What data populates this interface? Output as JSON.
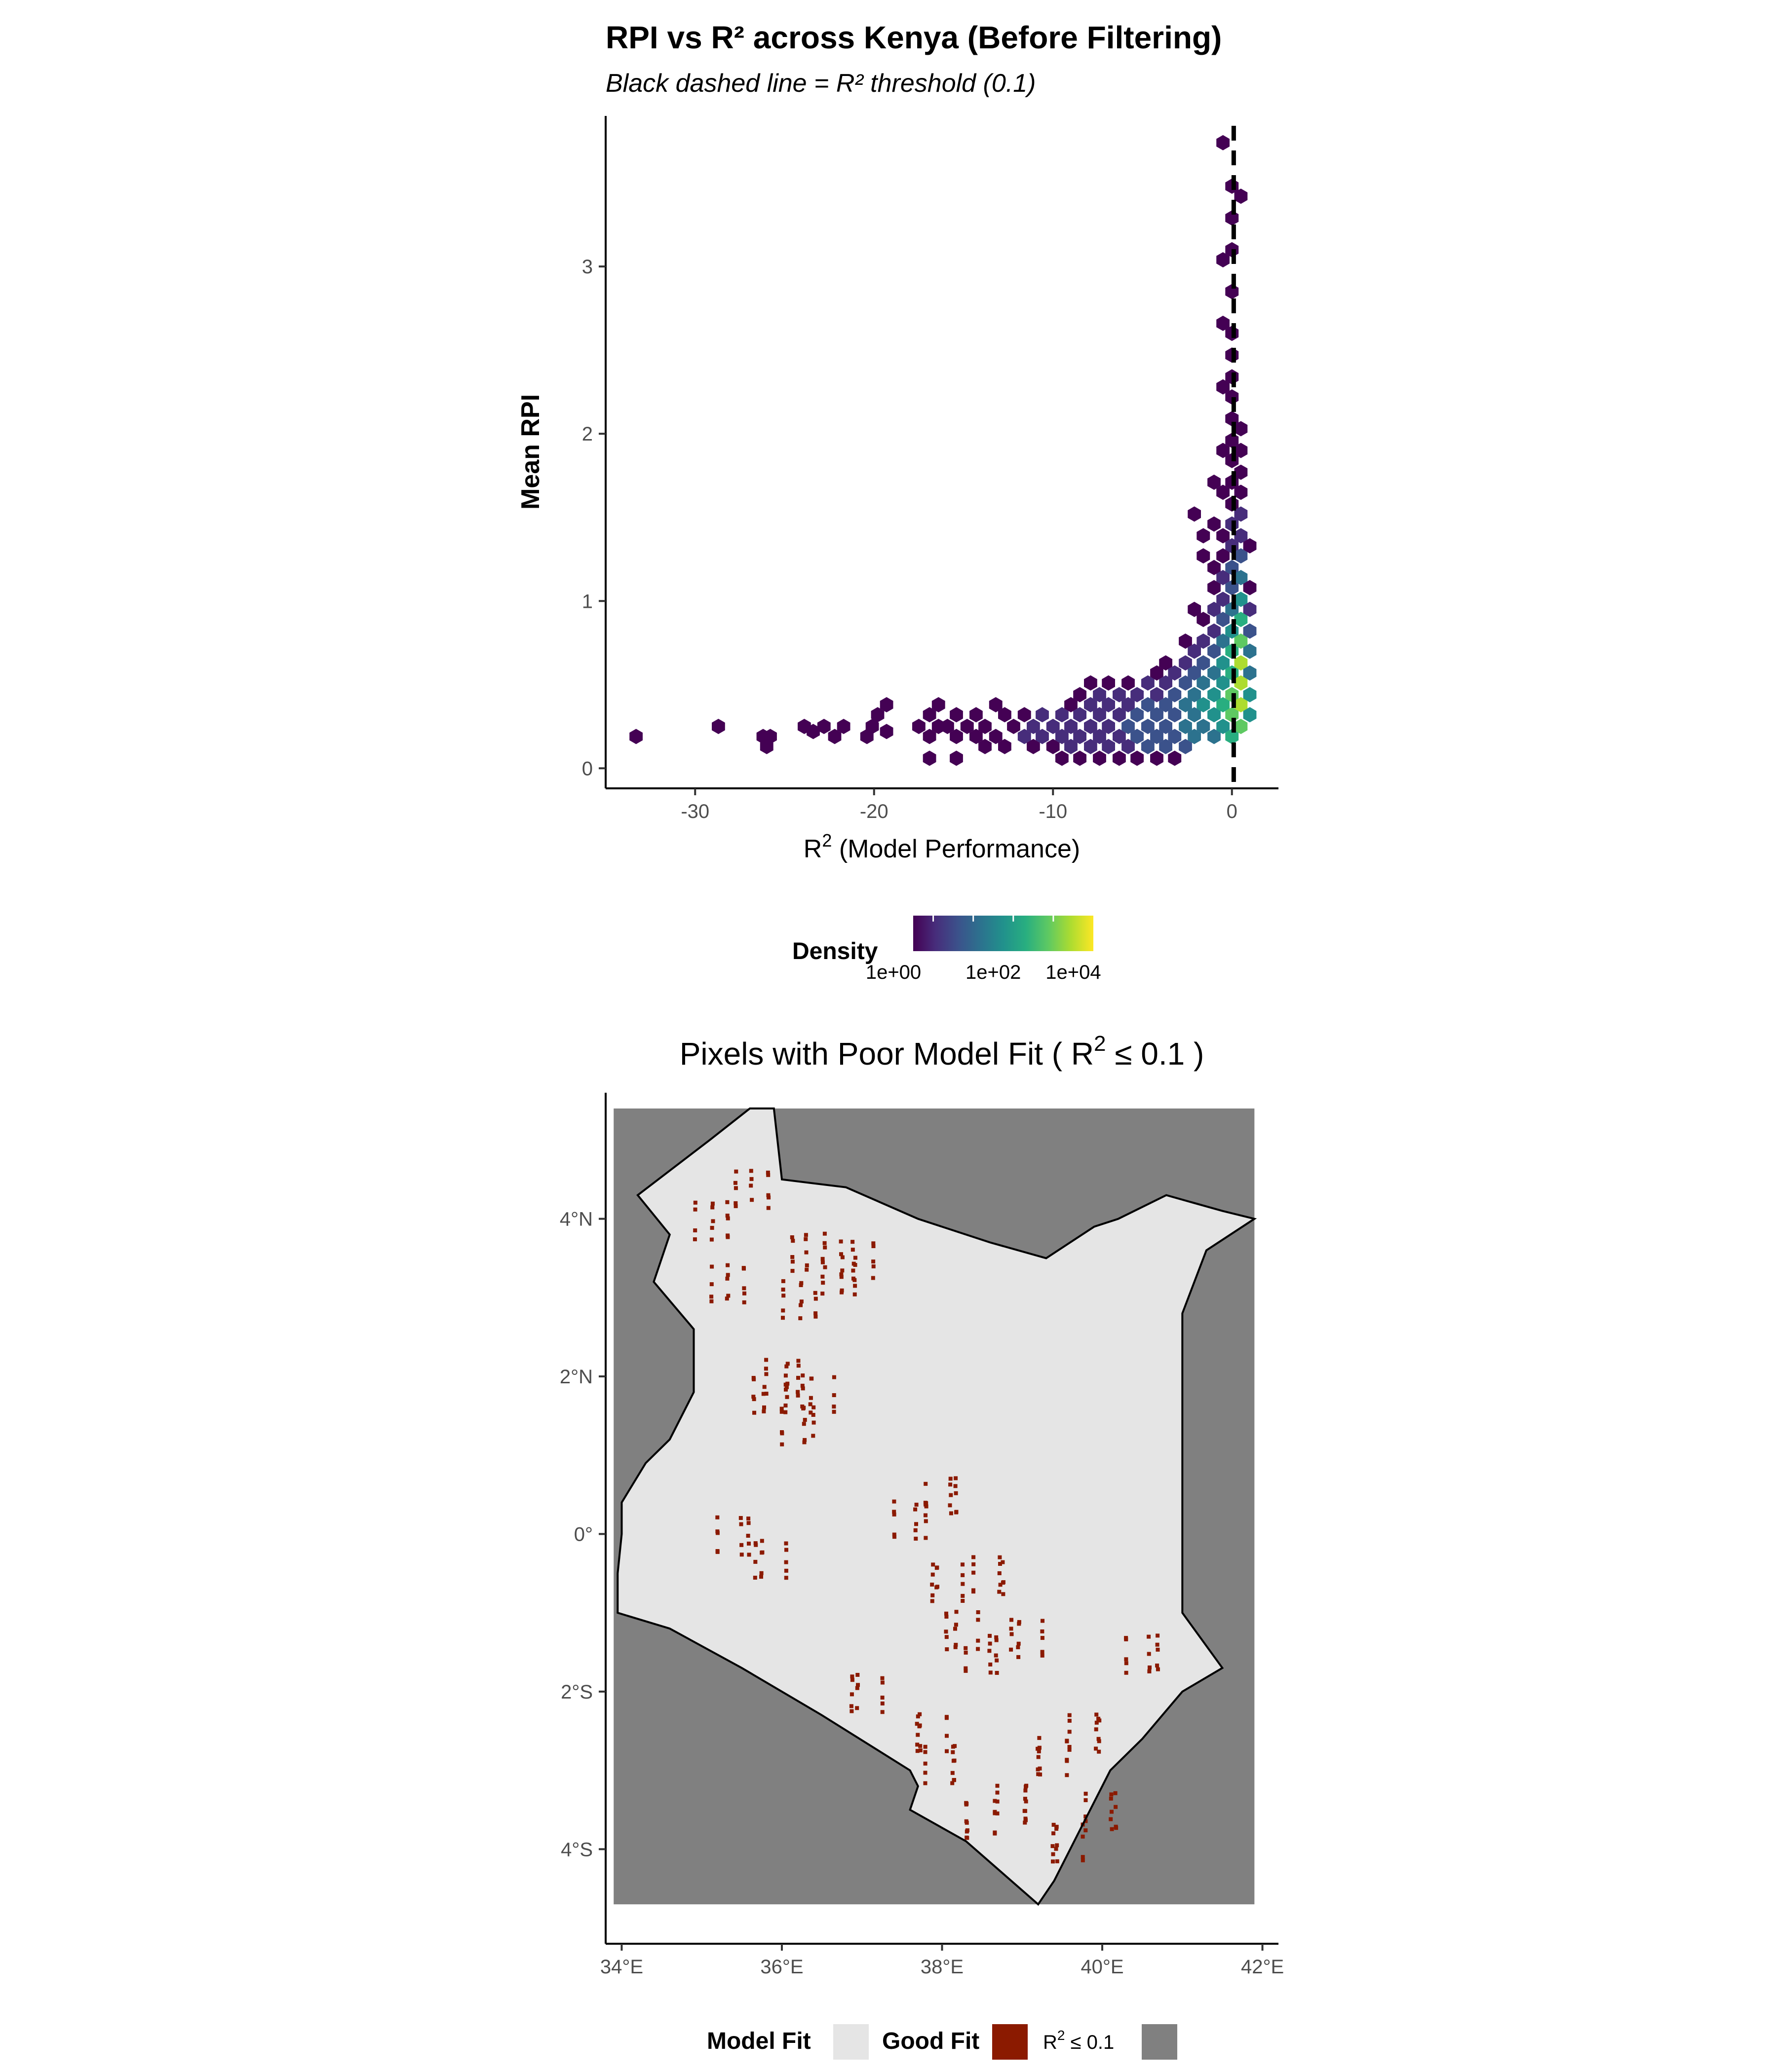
{
  "chart_data": [
    {
      "type": "heatmap",
      "subtype": "hexbin",
      "title": "RPI vs R² across Kenya (Before Filtering)",
      "subtitle": "Black dashed line = R² threshold (0.1)",
      "xlabel_base": "R",
      "xlabel_sup": "2",
      "xlabel_rest": " (Model Performance)",
      "ylabel": "Mean RPI",
      "xlim": [
        -35,
        2.6
      ],
      "ylim": [
        -0.12,
        3.9
      ],
      "x_ticks": [
        -30,
        -20,
        -10,
        0
      ],
      "y_ticks": [
        0,
        1,
        2,
        3
      ],
      "threshold_line": {
        "x": 0.1,
        "style": "dashed",
        "color": "#000000"
      },
      "hexes": [
        [
          -33.3,
          0.19,
          1
        ],
        [
          -28.7,
          0.25,
          1
        ],
        [
          -26.2,
          0.19,
          1
        ],
        [
          -25.8,
          0.19,
          1
        ],
        [
          -26.0,
          0.13,
          1
        ],
        [
          -23.9,
          0.25,
          1
        ],
        [
          -23.4,
          0.22,
          1
        ],
        [
          -22.8,
          0.25,
          1
        ],
        [
          -22.2,
          0.19,
          1
        ],
        [
          -21.7,
          0.25,
          1
        ],
        [
          -20.1,
          0.25,
          1
        ],
        [
          -19.8,
          0.32,
          1
        ],
        [
          -19.3,
          0.38,
          1
        ],
        [
          -20.4,
          0.19,
          1
        ],
        [
          -19.3,
          0.22,
          1
        ],
        [
          -17.5,
          0.25,
          1
        ],
        [
          -16.9,
          0.32,
          1
        ],
        [
          -16.9,
          0.19,
          1
        ],
        [
          -16.4,
          0.25,
          1
        ],
        [
          -16.4,
          0.38,
          1
        ],
        [
          -15.9,
          0.25,
          1
        ],
        [
          -15.4,
          0.19,
          1
        ],
        [
          -15.4,
          0.32,
          1
        ],
        [
          -16.9,
          0.06,
          1
        ],
        [
          -15.4,
          0.06,
          1
        ],
        [
          -14.8,
          0.25,
          1
        ],
        [
          -14.3,
          0.19,
          1
        ],
        [
          -14.3,
          0.32,
          1
        ],
        [
          -13.8,
          0.25,
          1
        ],
        [
          -13.8,
          0.13,
          1
        ],
        [
          -13.2,
          0.38,
          1
        ],
        [
          -13.2,
          0.19,
          1
        ],
        [
          -12.7,
          0.32,
          1
        ],
        [
          -12.7,
          0.13,
          1
        ],
        [
          -12.2,
          0.25,
          1
        ],
        [
          -11.6,
          0.19,
          2
        ],
        [
          -11.6,
          0.32,
          1
        ],
        [
          -11.1,
          0.25,
          2
        ],
        [
          -11.1,
          0.13,
          1
        ],
        [
          -10.6,
          0.19,
          2
        ],
        [
          -10.6,
          0.32,
          2
        ],
        [
          -10.0,
          0.25,
          2
        ],
        [
          -10.0,
          0.13,
          1
        ],
        [
          -9.5,
          0.19,
          2
        ],
        [
          -9.5,
          0.32,
          2
        ],
        [
          -9.5,
          0.06,
          1
        ],
        [
          -9.0,
          0.25,
          2
        ],
        [
          -9.0,
          0.38,
          1
        ],
        [
          -9.0,
          0.13,
          2
        ],
        [
          -8.5,
          0.19,
          2
        ],
        [
          -8.5,
          0.32,
          2
        ],
        [
          -8.5,
          0.44,
          1
        ],
        [
          -8.5,
          0.06,
          1
        ],
        [
          -7.9,
          0.25,
          2
        ],
        [
          -7.9,
          0.38,
          2
        ],
        [
          -7.9,
          0.13,
          2
        ],
        [
          -7.9,
          0.51,
          1
        ],
        [
          -7.4,
          0.19,
          2
        ],
        [
          -7.4,
          0.32,
          2
        ],
        [
          -7.4,
          0.44,
          2
        ],
        [
          -7.4,
          0.06,
          1
        ],
        [
          -6.9,
          0.25,
          2
        ],
        [
          -6.9,
          0.38,
          2
        ],
        [
          -6.9,
          0.13,
          2
        ],
        [
          -6.9,
          0.51,
          1
        ],
        [
          -6.3,
          0.19,
          2
        ],
        [
          -6.3,
          0.32,
          2
        ],
        [
          -6.3,
          0.44,
          2
        ],
        [
          -6.3,
          0.06,
          1
        ],
        [
          -5.8,
          0.25,
          3
        ],
        [
          -5.8,
          0.38,
          2
        ],
        [
          -5.8,
          0.13,
          2
        ],
        [
          -5.8,
          0.51,
          1
        ],
        [
          -5.3,
          0.19,
          3
        ],
        [
          -5.3,
          0.32,
          3
        ],
        [
          -5.3,
          0.44,
          2
        ],
        [
          -5.3,
          0.06,
          1
        ],
        [
          -4.7,
          0.25,
          3
        ],
        [
          -4.7,
          0.38,
          3
        ],
        [
          -4.7,
          0.13,
          3
        ],
        [
          -4.7,
          0.51,
          2
        ],
        [
          -4.2,
          0.19,
          3
        ],
        [
          -4.2,
          0.32,
          3
        ],
        [
          -4.2,
          0.44,
          2
        ],
        [
          -4.2,
          0.06,
          1
        ],
        [
          -4.2,
          0.57,
          1
        ],
        [
          -3.7,
          0.25,
          3
        ],
        [
          -3.7,
          0.38,
          3
        ],
        [
          -3.7,
          0.13,
          3
        ],
        [
          -3.7,
          0.51,
          2
        ],
        [
          -3.7,
          0.63,
          1
        ],
        [
          -3.2,
          0.19,
          3
        ],
        [
          -3.2,
          0.32,
          3
        ],
        [
          -3.2,
          0.44,
          3
        ],
        [
          -3.2,
          0.57,
          2
        ],
        [
          -3.2,
          0.06,
          1
        ],
        [
          -2.6,
          0.25,
          4
        ],
        [
          -2.6,
          0.38,
          4
        ],
        [
          -2.6,
          0.13,
          3
        ],
        [
          -2.6,
          0.51,
          3
        ],
        [
          -2.6,
          0.63,
          2
        ],
        [
          -2.6,
          0.76,
          1
        ],
        [
          -2.1,
          0.19,
          4
        ],
        [
          -2.1,
          0.32,
          4
        ],
        [
          -2.1,
          0.44,
          4
        ],
        [
          -2.1,
          0.57,
          3
        ],
        [
          -2.1,
          0.7,
          2
        ],
        [
          -2.1,
          0.95,
          1
        ],
        [
          -2.1,
          1.52,
          1
        ],
        [
          -1.6,
          0.25,
          4
        ],
        [
          -1.6,
          0.38,
          5
        ],
        [
          -1.6,
          0.51,
          4
        ],
        [
          -1.6,
          0.63,
          3
        ],
        [
          -1.6,
          0.76,
          2
        ],
        [
          -1.6,
          0.89,
          1
        ],
        [
          -1.6,
          1.27,
          1
        ],
        [
          -1.6,
          1.39,
          1
        ],
        [
          -1.0,
          0.19,
          4
        ],
        [
          -1.0,
          0.32,
          5
        ],
        [
          -1.0,
          0.44,
          5
        ],
        [
          -1.0,
          0.57,
          4
        ],
        [
          -1.0,
          0.7,
          3
        ],
        [
          -1.0,
          0.82,
          2
        ],
        [
          -1.0,
          0.95,
          2
        ],
        [
          -1.0,
          1.08,
          1
        ],
        [
          -1.0,
          1.2,
          1
        ],
        [
          -1.0,
          1.46,
          1
        ],
        [
          -1.0,
          1.71,
          1
        ],
        [
          -0.5,
          0.25,
          5
        ],
        [
          -0.5,
          0.38,
          6
        ],
        [
          -0.5,
          0.51,
          5
        ],
        [
          -0.5,
          0.63,
          5
        ],
        [
          -0.5,
          0.76,
          4
        ],
        [
          -0.5,
          0.89,
          3
        ],
        [
          -0.5,
          1.01,
          2
        ],
        [
          -0.5,
          1.14,
          2
        ],
        [
          -0.5,
          1.27,
          1
        ],
        [
          -0.5,
          1.39,
          1
        ],
        [
          -0.5,
          1.65,
          1
        ],
        [
          -0.5,
          1.9,
          1
        ],
        [
          -0.5,
          2.28,
          1
        ],
        [
          -0.5,
          2.66,
          1
        ],
        [
          -0.5,
          3.04,
          1
        ],
        [
          -0.5,
          3.74,
          1
        ],
        [
          0.0,
          0.19,
          6
        ],
        [
          0.0,
          0.32,
          7
        ],
        [
          0.0,
          0.44,
          7
        ],
        [
          0.0,
          0.57,
          6
        ],
        [
          0.0,
          0.7,
          6
        ],
        [
          0.0,
          0.82,
          5
        ],
        [
          0.0,
          0.95,
          4
        ],
        [
          0.0,
          1.08,
          3
        ],
        [
          0.0,
          1.2,
          3
        ],
        [
          0.0,
          1.33,
          2
        ],
        [
          0.0,
          1.46,
          2
        ],
        [
          0.0,
          1.58,
          1
        ],
        [
          0.0,
          1.71,
          1
        ],
        [
          0.0,
          1.84,
          1
        ],
        [
          0.0,
          1.96,
          1
        ],
        [
          0.0,
          2.09,
          1
        ],
        [
          0.0,
          2.22,
          1
        ],
        [
          0.0,
          2.34,
          1
        ],
        [
          0.0,
          2.47,
          1
        ],
        [
          0.0,
          2.6,
          1
        ],
        [
          0.0,
          2.85,
          1
        ],
        [
          0.0,
          3.1,
          1
        ],
        [
          0.0,
          3.29,
          1
        ],
        [
          0.0,
          3.48,
          1
        ],
        [
          0.5,
          0.25,
          7
        ],
        [
          0.5,
          0.38,
          8
        ],
        [
          0.5,
          0.51,
          8
        ],
        [
          0.5,
          0.63,
          8
        ],
        [
          0.5,
          0.76,
          7
        ],
        [
          0.5,
          0.89,
          6
        ],
        [
          0.5,
          1.01,
          5
        ],
        [
          0.5,
          1.14,
          4
        ],
        [
          0.5,
          1.27,
          3
        ],
        [
          0.5,
          1.39,
          2
        ],
        [
          0.5,
          1.52,
          2
        ],
        [
          0.5,
          1.65,
          1
        ],
        [
          0.5,
          1.77,
          1
        ],
        [
          0.5,
          1.9,
          1
        ],
        [
          0.5,
          2.03,
          1
        ],
        [
          0.5,
          3.42,
          1
        ],
        [
          1.0,
          0.32,
          5
        ],
        [
          1.0,
          0.44,
          5
        ],
        [
          1.0,
          0.57,
          4
        ],
        [
          1.0,
          0.7,
          4
        ],
        [
          1.0,
          0.82,
          3
        ],
        [
          1.0,
          0.95,
          2
        ],
        [
          1.0,
          1.08,
          1
        ],
        [
          1.0,
          1.33,
          1
        ]
      ],
      "legend": {
        "title": "Density",
        "scale": "log10",
        "colors": [
          "#440154",
          "#472d7b",
          "#3b528b",
          "#2c728e",
          "#21918c",
          "#28ae80",
          "#5ec962",
          "#addc30",
          "#fde725"
        ],
        "tick_labels": [
          "1e+00",
          "1e+02",
          "1e+04"
        ]
      }
    },
    {
      "type": "map",
      "title_pre": "Pixels with Poor Model Fit ( R",
      "title_sup": "2",
      "title_post": " ≤ 0.1 )",
      "xlim": [
        33.8,
        42.2
      ],
      "ylim": [
        -5.2,
        5.6
      ],
      "x_ticks": [
        "34°E",
        "36°E",
        "38°E",
        "40°E",
        "42°E"
      ],
      "x_tick_values": [
        34,
        36,
        38,
        40,
        42
      ],
      "y_ticks": [
        "4°N",
        "2°N",
        "0°",
        "2°S",
        "4°S"
      ],
      "y_tick_values": [
        4,
        2,
        0,
        -2,
        -4
      ],
      "raster_extent": {
        "lon": [
          33.9,
          41.9
        ],
        "lat": [
          -4.7,
          5.4
        ]
      },
      "boundary_lonlat": [
        [
          35.9,
          5.4
        ],
        [
          35.6,
          5.4
        ],
        [
          35.1,
          5.0
        ],
        [
          34.2,
          4.3
        ],
        [
          34.6,
          3.8
        ],
        [
          34.4,
          3.2
        ],
        [
          34.9,
          2.6
        ],
        [
          34.9,
          1.8
        ],
        [
          34.6,
          1.2
        ],
        [
          34.3,
          0.9
        ],
        [
          34.0,
          0.4
        ],
        [
          34.0,
          0.0
        ],
        [
          33.95,
          -0.5
        ],
        [
          33.95,
          -1.0
        ],
        [
          34.6,
          -1.2
        ],
        [
          35.5,
          -1.7
        ],
        [
          36.5,
          -2.3
        ],
        [
          37.6,
          -3.0
        ],
        [
          37.7,
          -3.2
        ],
        [
          37.6,
          -3.5
        ],
        [
          38.3,
          -3.9
        ],
        [
          39.2,
          -4.7
        ],
        [
          39.4,
          -4.4
        ],
        [
          39.7,
          -3.8
        ],
        [
          40.1,
          -3.0
        ],
        [
          40.5,
          -2.6
        ],
        [
          41.0,
          -2.0
        ],
        [
          41.5,
          -1.7
        ],
        [
          41.0,
          -1.0
        ],
        [
          41.0,
          0.0
        ],
        [
          41.0,
          1.0
        ],
        [
          41.0,
          2.8
        ],
        [
          41.3,
          3.6
        ],
        [
          41.9,
          4.0
        ],
        [
          41.5,
          4.1
        ],
        [
          40.8,
          4.3
        ],
        [
          40.2,
          4.0
        ],
        [
          39.9,
          3.9
        ],
        [
          39.3,
          3.5
        ],
        [
          38.6,
          3.7
        ],
        [
          37.7,
          4.0
        ],
        [
          36.8,
          4.4
        ],
        [
          36.0,
          4.5
        ]
      ],
      "poor_fit_regions": [
        [
          35.1,
          4.0
        ],
        [
          35.3,
          3.2
        ],
        [
          35.6,
          4.4
        ],
        [
          36.2,
          3.0
        ],
        [
          36.3,
          3.6
        ],
        [
          36.7,
          3.3
        ],
        [
          36.9,
          3.5
        ],
        [
          36.0,
          2.0
        ],
        [
          35.8,
          1.8
        ],
        [
          36.2,
          1.4
        ],
        [
          36.4,
          1.8
        ],
        [
          35.4,
          0.0
        ],
        [
          35.8,
          -0.3
        ],
        [
          38.0,
          0.5
        ],
        [
          38.0,
          -0.6
        ],
        [
          38.6,
          -0.5
        ],
        [
          37.8,
          -2.5
        ],
        [
          38.0,
          -2.9
        ],
        [
          38.4,
          -3.6
        ],
        [
          38.9,
          -3.4
        ],
        [
          39.3,
          -2.8
        ],
        [
          39.8,
          -2.5
        ],
        [
          39.5,
          -3.9
        ],
        [
          40.0,
          -3.5
        ],
        [
          37.0,
          -2.0
        ],
        [
          38.5,
          -1.5
        ],
        [
          39.0,
          -1.3
        ],
        [
          40.5,
          -1.5
        ],
        [
          38.2,
          -1.2
        ],
        [
          37.6,
          0.2
        ]
      ],
      "legend": {
        "title": "Model Fit",
        "items": [
          {
            "label": "Good Fit",
            "color": "#e5e5e5"
          },
          {
            "label_pre": "R",
            "label_sup": "2",
            "label_post": " ≤ 0.1",
            "color": "#8b1a00"
          },
          {
            "label": "",
            "color": "#808080"
          }
        ]
      }
    }
  ]
}
